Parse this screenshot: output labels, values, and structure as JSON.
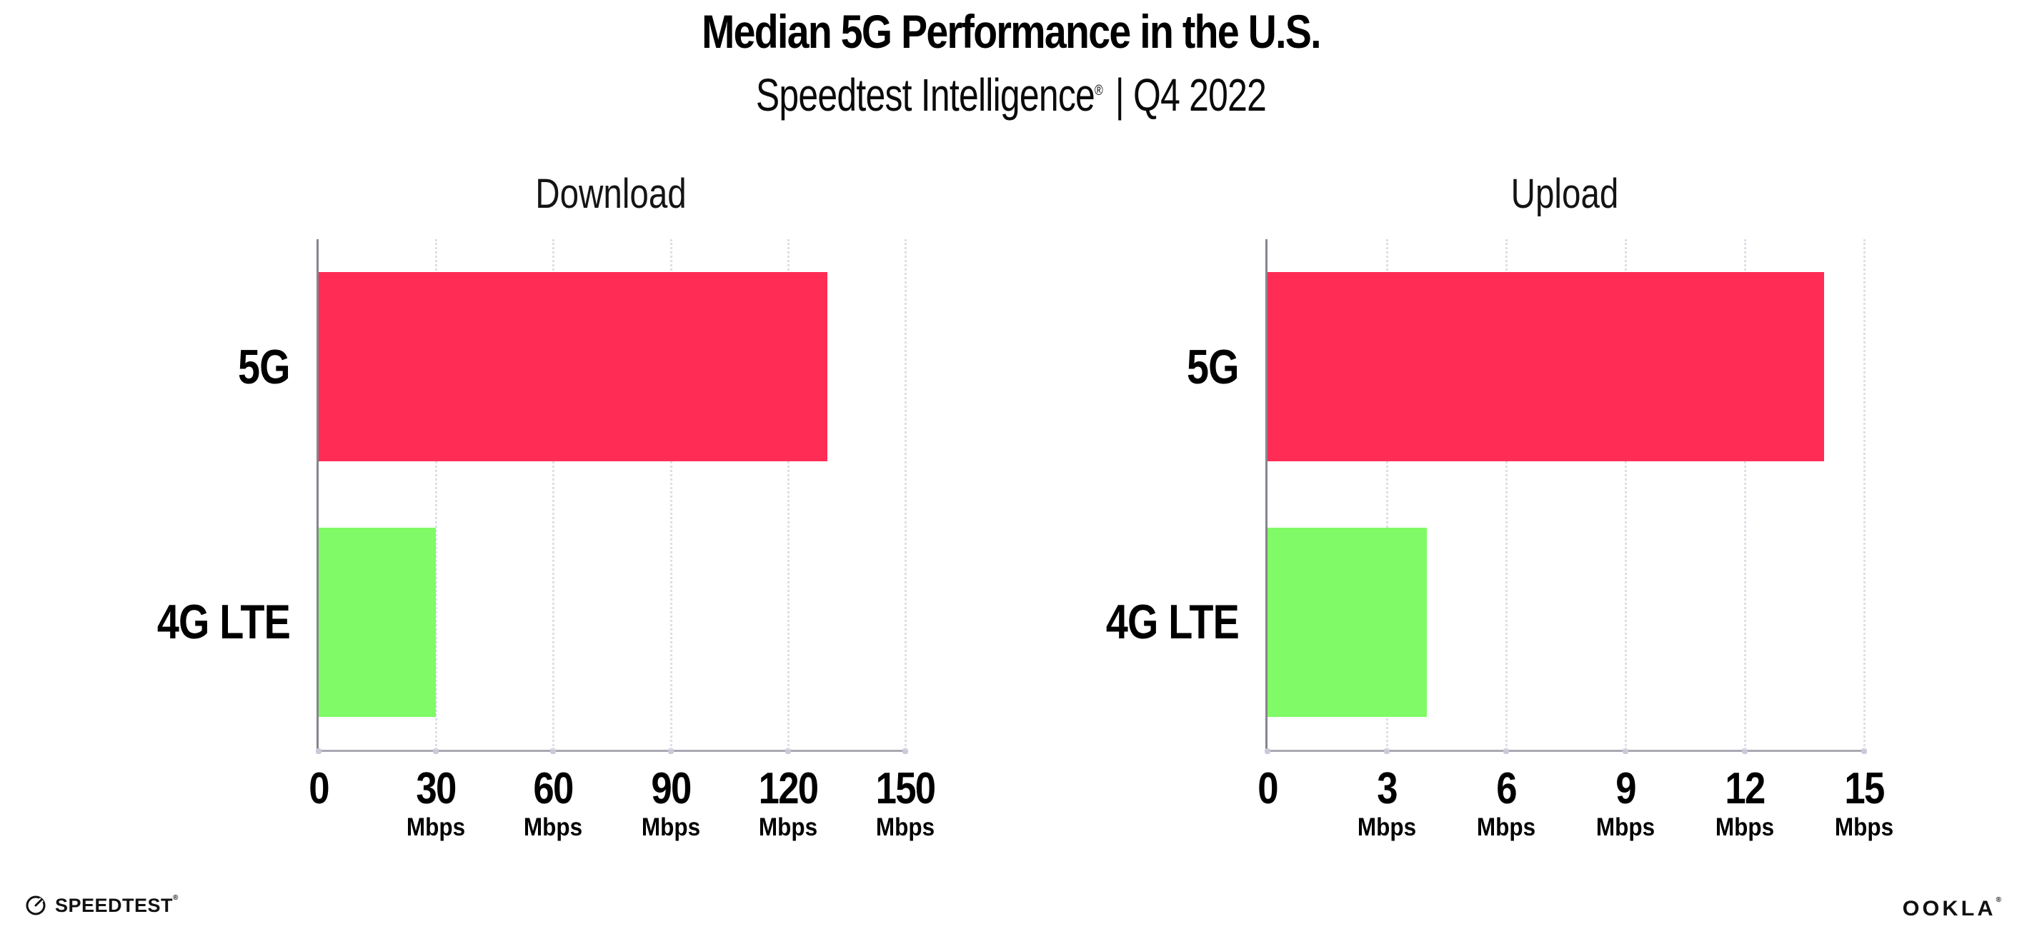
{
  "header": {
    "title": "Median 5G Performance in the U.S.",
    "subtitle_brand": "Speedtest Intelligence",
    "subtitle_reg": "®",
    "subtitle_rest": " | Q4 2022"
  },
  "footer": {
    "speedtest_logo_text": "SPEEDTEST",
    "speedtest_reg": "®",
    "ookla_logo_text": "OOKLA",
    "ookla_reg": "®"
  },
  "colors": {
    "bar_5g": "#FF2D55",
    "bar_4g_lte": "#80FA66"
  },
  "chart_data": [
    {
      "type": "bar",
      "orientation": "horizontal",
      "title": "Download",
      "categories": [
        "5G",
        "4G LTE"
      ],
      "values": [
        130,
        30
      ],
      "bar_colors": [
        "#FF2D55",
        "#80FA66"
      ],
      "unit": "Mbps",
      "xticks": [
        0,
        30,
        60,
        90,
        120,
        150
      ],
      "xlim": [
        0,
        150
      ],
      "xlabel": "",
      "ylabel": "",
      "grid": "vertical-dotted",
      "legend": "none"
    },
    {
      "type": "bar",
      "orientation": "horizontal",
      "title": "Upload",
      "categories": [
        "5G",
        "4G LTE"
      ],
      "values": [
        14,
        4
      ],
      "bar_colors": [
        "#FF2D55",
        "#80FA66"
      ],
      "unit": "Mbps",
      "xticks": [
        0,
        3,
        6,
        9,
        12,
        15
      ],
      "xlim": [
        0,
        15
      ],
      "xlabel": "",
      "ylabel": "",
      "grid": "vertical-dotted",
      "legend": "none"
    }
  ]
}
